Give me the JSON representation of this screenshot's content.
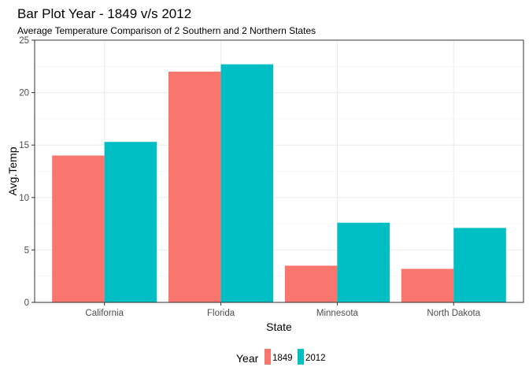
{
  "chart_data": {
    "type": "bar",
    "title": "Bar Plot Year - 1849 v/s 2012",
    "subtitle": "Average Temperature Comparison of 2 Southern and 2 Northern States",
    "xlabel": "State",
    "ylabel": "Avg.Temp",
    "categories": [
      "California",
      "Florida",
      "Minnesota",
      "North Dakota"
    ],
    "series": [
      {
        "name": "1849",
        "color": "#F8766D",
        "values": [
          14.0,
          22.0,
          3.5,
          3.2
        ]
      },
      {
        "name": "2012",
        "color": "#00BFC4",
        "values": [
          15.3,
          22.7,
          7.6,
          7.1
        ]
      }
    ],
    "ylim": [
      0,
      25
    ],
    "yticks": [
      0,
      5,
      10,
      15,
      20,
      25
    ],
    "grid": true,
    "legend": {
      "title": "Year",
      "position": "bottom"
    }
  }
}
